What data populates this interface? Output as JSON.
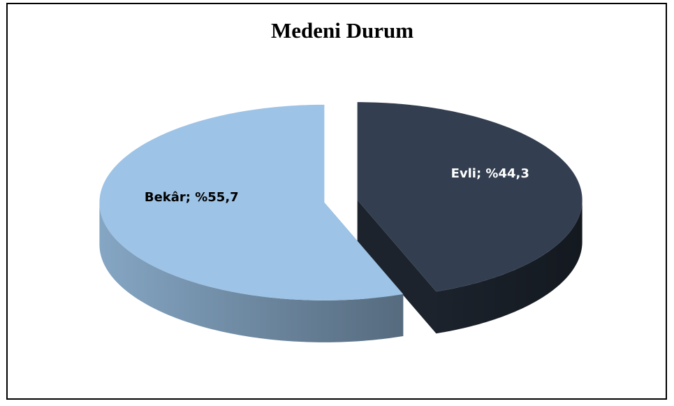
{
  "chart_data": {
    "type": "pie",
    "title": "Medeni Durum",
    "values": [
      44.3,
      55.7
    ],
    "value_labels": [
      "Evli; %44,3",
      "Bekâr; %55,7"
    ],
    "colors": [
      "#333f50",
      "#9dc3e6"
    ],
    "label_colors": [
      "#ffffff",
      "#000000"
    ]
  }
}
